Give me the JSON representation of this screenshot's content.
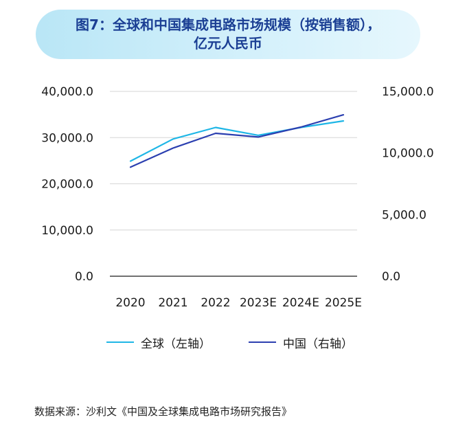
{
  "title": {
    "line1": "图7：全球和中国集成电路市场规模（按销售额），",
    "line2": "亿元人民币"
  },
  "colors": {
    "global": "#1eb6e6",
    "china": "#2b3fb0",
    "grid": "#d6d6d6",
    "banner": "#c9ecf9",
    "title": "#1b3f94"
  },
  "chart_data": {
    "type": "line",
    "categories": [
      "2020",
      "2021",
      "2022",
      "2023E",
      "2024E",
      "2025E"
    ],
    "series": [
      {
        "name": "全球（左轴）",
        "axis": "left",
        "values": [
          24900,
          29700,
          32200,
          30500,
          32200,
          33600
        ]
      },
      {
        "name": "中国（右轴）",
        "axis": "right",
        "values": [
          8850,
          10400,
          11600,
          11300,
          12100,
          13100
        ]
      }
    ],
    "left_axis": {
      "min": 0,
      "max": 40000,
      "ticks": [
        0,
        10000,
        20000,
        30000,
        40000
      ],
      "tick_labels": [
        "0.0",
        "10,000.0",
        "20,000.0",
        "30,000.0",
        "40,000.0"
      ]
    },
    "right_axis": {
      "min": 0,
      "max": 15000,
      "ticks": [
        0,
        5000,
        10000,
        15000
      ],
      "tick_labels": [
        "0.0",
        "5,000.0",
        "10,000.0",
        "15,000.0"
      ]
    },
    "grid": true,
    "legend_position": "bottom"
  },
  "source": "数据来源：沙利文《中国及全球集成电路市场研究报告》"
}
